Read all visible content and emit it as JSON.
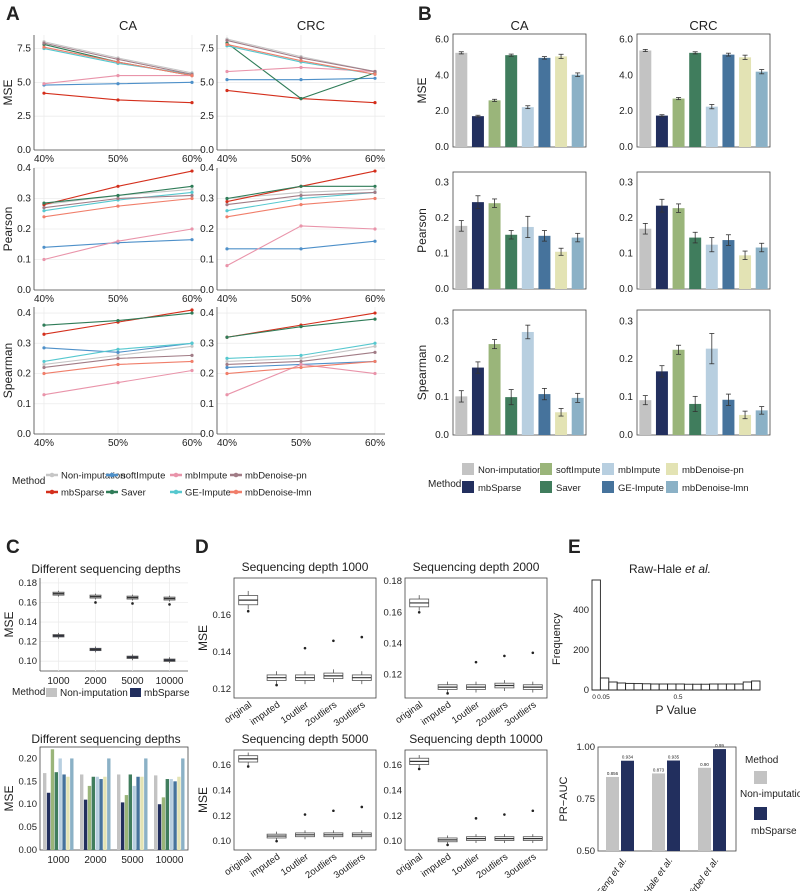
{
  "panel_letters": [
    "A",
    "B",
    "C",
    "D",
    "E"
  ],
  "colors": {
    "Non-imputation": "#c6c6c6",
    "mbSparse": "#d42f1c",
    "softImpute": "#4e90c9",
    "Saver": "#2f7c58",
    "mbImpute": "#e994aa",
    "GE-Impute": "#56c8cf",
    "mbDenoise-pn": "#a17c86",
    "mbDenoise-lmn": "#f07e6a"
  },
  "bar_colors": {
    "Non-imputation": "#c3c3c3",
    "mbSparse": "#222f5e",
    "softImpute": "#9ab57a",
    "Saver": "#407d5d",
    "mbImpute": "#b8cfe0",
    "GE-Impute": "#46739c",
    "mbDenoise-pn": "#e3e3b4",
    "mbDenoise-lmn": "#8bb1c6"
  },
  "legend": {
    "title": "Method",
    "items": [
      "Non-imputation",
      "softImpute",
      "mbImpute",
      "mbDenoise-pn",
      "mbSparse",
      "Saver",
      "GE-Impute",
      "mbDenoise-lmn"
    ]
  },
  "chart_data": [
    {
      "id": "A",
      "type": "line",
      "columns": [
        "CA",
        "CRC"
      ],
      "x": [
        "40%",
        "50%",
        "60%"
      ],
      "rows": [
        {
          "ylabel": "MSE",
          "ylim": [
            0,
            8.5
          ],
          "ticks": [
            0.0,
            2.5,
            5.0,
            7.5
          ],
          "CA": {
            "Non-imputation": [
              8.0,
              6.8,
              5.7
            ],
            "mbSparse": [
              4.2,
              3.7,
              3.5
            ],
            "softImpute": [
              4.8,
              4.9,
              5.0
            ],
            "Saver": [
              7.8,
              6.5,
              5.5
            ],
            "mbImpute": [
              4.9,
              5.5,
              5.5
            ],
            "GE-Impute": [
              7.5,
              6.4,
              5.6
            ],
            "mbDenoise-pn": [
              7.9,
              6.7,
              5.6
            ],
            "mbDenoise-lmn": [
              7.6,
              6.5,
              5.5
            ]
          },
          "CRC": {
            "Non-imputation": [
              8.2,
              6.9,
              5.8
            ],
            "mbSparse": [
              4.4,
              3.8,
              3.5
            ],
            "softImpute": [
              5.2,
              5.2,
              5.3
            ],
            "Saver": [
              7.9,
              3.8,
              5.7
            ],
            "mbImpute": [
              5.8,
              6.1,
              5.8
            ],
            "GE-Impute": [
              7.7,
              6.5,
              5.6
            ],
            "mbDenoise-pn": [
              8.1,
              6.8,
              5.8
            ],
            "mbDenoise-lmn": [
              7.8,
              6.6,
              5.6
            ]
          }
        },
        {
          "ylabel": "Pearson",
          "ylim": [
            0,
            0.4
          ],
          "ticks": [
            0.0,
            0.1,
            0.2,
            0.3,
            0.4
          ],
          "CA": {
            "Non-imputation": [
              0.28,
              0.31,
              0.33
            ],
            "mbSparse": [
              0.28,
              0.34,
              0.39
            ],
            "softImpute": [
              0.14,
              0.155,
              0.165
            ],
            "Saver": [
              0.285,
              0.31,
              0.34
            ],
            "mbImpute": [
              0.1,
              0.16,
              0.2
            ],
            "GE-Impute": [
              0.26,
              0.295,
              0.32
            ],
            "mbDenoise-pn": [
              0.27,
              0.3,
              0.31
            ],
            "mbDenoise-lmn": [
              0.24,
              0.275,
              0.3
            ]
          },
          "CRC": {
            "Non-imputation": [
              0.3,
              0.32,
              0.33
            ],
            "mbSparse": [
              0.29,
              0.34,
              0.39
            ],
            "softImpute": [
              0.135,
              0.135,
              0.16
            ],
            "Saver": [
              0.3,
              0.34,
              0.34
            ],
            "mbImpute": [
              0.08,
              0.21,
              0.2
            ],
            "GE-Impute": [
              0.26,
              0.3,
              0.32
            ],
            "mbDenoise-pn": [
              0.28,
              0.31,
              0.32
            ],
            "mbDenoise-lmn": [
              0.24,
              0.28,
              0.3
            ]
          }
        },
        {
          "ylabel": "Spearman",
          "ylim": [
            0,
            0.42
          ],
          "ticks": [
            0.0,
            0.1,
            0.2,
            0.3,
            0.4
          ],
          "CA": {
            "Non-imputation": [
              0.23,
              0.26,
              0.29
            ],
            "mbSparse": [
              0.33,
              0.37,
              0.41
            ],
            "softImpute": [
              0.285,
              0.27,
              0.3
            ],
            "Saver": [
              0.36,
              0.375,
              0.4
            ],
            "mbImpute": [
              0.13,
              0.17,
              0.21
            ],
            "GE-Impute": [
              0.24,
              0.28,
              0.3
            ],
            "mbDenoise-pn": [
              0.22,
              0.25,
              0.26
            ],
            "mbDenoise-lmn": [
              0.2,
              0.23,
              0.24
            ]
          },
          "CRC": {
            "Non-imputation": [
              0.24,
              0.25,
              0.29
            ],
            "mbSparse": [
              0.32,
              0.36,
              0.4
            ],
            "softImpute": [
              0.22,
              0.23,
              0.24
            ],
            "Saver": [
              0.32,
              0.355,
              0.38
            ],
            "mbImpute": [
              0.13,
              0.23,
              0.2
            ],
            "GE-Impute": [
              0.25,
              0.26,
              0.3
            ],
            "mbDenoise-pn": [
              0.23,
              0.24,
              0.27
            ],
            "mbDenoise-lmn": [
              0.2,
              0.22,
              0.24
            ]
          }
        }
      ]
    },
    {
      "id": "B",
      "type": "bar",
      "columns": [
        "CA",
        "CRC"
      ],
      "categories": [
        "Non-imputation",
        "mbSparse",
        "softImpute",
        "Saver",
        "mbImpute",
        "GE-Impute",
        "mbDenoise-pn",
        "mbDenoise-lmn"
      ],
      "rows": [
        {
          "ylabel": "MSE",
          "ylim": [
            0,
            6.3
          ],
          "ticks": [
            0.0,
            2.0,
            4.0,
            6.0
          ],
          "CA": [
            5.25,
            1.72,
            2.6,
            5.12,
            2.22,
            4.97,
            5.05,
            4.03
          ],
          "CA_err": [
            0.06,
            0.05,
            0.06,
            0.06,
            0.08,
            0.07,
            0.12,
            0.1
          ],
          "CRC": [
            5.38,
            1.75,
            2.7,
            5.25,
            2.25,
            5.15,
            5.0,
            4.2
          ],
          "CRC_err": [
            0.06,
            0.05,
            0.06,
            0.06,
            0.12,
            0.08,
            0.12,
            0.12
          ]
        },
        {
          "ylabel": "Pearson",
          "ylim": [
            0,
            0.33
          ],
          "ticks": [
            0.0,
            0.1,
            0.2,
            0.3
          ],
          "CA": [
            0.178,
            0.245,
            0.242,
            0.153,
            0.175,
            0.15,
            0.105,
            0.145
          ],
          "CA_err": [
            0.015,
            0.018,
            0.012,
            0.012,
            0.03,
            0.015,
            0.01,
            0.012
          ],
          "CRC": [
            0.17,
            0.235,
            0.228,
            0.145,
            0.125,
            0.138,
            0.095,
            0.117
          ],
          "CRC_err": [
            0.015,
            0.018,
            0.012,
            0.015,
            0.02,
            0.015,
            0.012,
            0.012
          ]
        },
        {
          "ylabel": "Spearman",
          "ylim": [
            0,
            0.33
          ],
          "ticks": [
            0.0,
            0.1,
            0.2,
            0.3
          ],
          "CA": [
            0.102,
            0.178,
            0.24,
            0.1,
            0.272,
            0.108,
            0.06,
            0.098
          ],
          "CA_err": [
            0.015,
            0.015,
            0.012,
            0.02,
            0.018,
            0.015,
            0.01,
            0.012
          ],
          "CRC": [
            0.092,
            0.168,
            0.225,
            0.082,
            0.228,
            0.093,
            0.053,
            0.065
          ],
          "CRC_err": [
            0.012,
            0.015,
            0.012,
            0.02,
            0.04,
            0.015,
            0.01,
            0.01
          ]
        }
      ],
      "legend_title": "Method",
      "legend_items": [
        "Non-imputation",
        "softImpute",
        "mbImpute",
        "mbDenoise-pn",
        "mbSparse",
        "Saver",
        "GE-Impute",
        "mbDenoise-lmn"
      ]
    },
    {
      "id": "C1",
      "type": "box",
      "title": "Different sequencing depths",
      "ylabel": "MSE",
      "ylim": [
        0.09,
        0.185
      ],
      "ticks": [
        0.1,
        0.12,
        0.14,
        0.16,
        0.18
      ],
      "categories": [
        "1000",
        "2000",
        "5000",
        "10000"
      ],
      "series": [
        {
          "name": "Non-imputation",
          "medians": [
            0.169,
            0.166,
            0.165,
            0.164
          ]
        },
        {
          "name": "mbSparse",
          "medians": [
            0.126,
            0.112,
            0.104,
            0.101
          ]
        }
      ],
      "legend_title": "Method",
      "legend_items": [
        "Non-imputation",
        "mbSparse"
      ]
    },
    {
      "id": "C2",
      "type": "bar",
      "title": "Different sequencing depths",
      "ylabel": "MSE",
      "ylim": [
        0,
        0.225
      ],
      "ticks": [
        0.0,
        0.05,
        0.1,
        0.15,
        0.2
      ],
      "categories": [
        "1000",
        "2000",
        "5000",
        "10000"
      ],
      "methods": [
        "Non-imputation",
        "mbSparse",
        "softImpute",
        "Saver",
        "mbImpute",
        "GE-Impute",
        "mbDenoise-pn",
        "mbDenoise-lmn"
      ],
      "values": [
        [
          0.168,
          0.125,
          0.22,
          0.17,
          0.2,
          0.165,
          0.16,
          0.2
        ],
        [
          0.165,
          0.11,
          0.14,
          0.16,
          0.16,
          0.155,
          0.16,
          0.2
        ],
        [
          0.165,
          0.104,
          0.12,
          0.165,
          0.14,
          0.16,
          0.16,
          0.2
        ],
        [
          0.163,
          0.1,
          0.115,
          0.155,
          0.155,
          0.15,
          0.16,
          0.2
        ]
      ]
    },
    {
      "id": "D",
      "type": "box",
      "categories": [
        "original",
        "imputed",
        "1outlier",
        "2outliers",
        "3outliers"
      ],
      "panels": [
        {
          "title": "Sequencing depth 1000",
          "ylabel": "MSE",
          "ylim": [
            0.115,
            0.18
          ],
          "ticks": [
            0.12,
            0.14,
            0.16
          ],
          "medians": [
            0.168,
            0.126,
            0.126,
            0.127,
            0.126
          ]
        },
        {
          "title": "Sequencing depth 2000",
          "ylabel": "",
          "ylim": [
            0.105,
            0.182
          ],
          "ticks": [
            0.12,
            0.14,
            0.16,
            0.18
          ],
          "medians": [
            0.166,
            0.112,
            0.112,
            0.113,
            0.112
          ]
        },
        {
          "title": "Sequencing depth 5000",
          "ylabel": "MSE",
          "ylim": [
            0.093,
            0.172
          ],
          "ticks": [
            0.1,
            0.12,
            0.14,
            0.16
          ],
          "medians": [
            0.165,
            0.104,
            0.105,
            0.105,
            0.105
          ]
        },
        {
          "title": "Sequencing depth 10000",
          "ylabel": "",
          "ylim": [
            0.093,
            0.172
          ],
          "ticks": [
            0.1,
            0.12,
            0.14,
            0.16
          ],
          "medians": [
            0.163,
            0.101,
            0.102,
            0.102,
            0.102
          ]
        }
      ]
    },
    {
      "id": "E1",
      "type": "histogram",
      "title": "Raw-Hale",
      "title_italic": "et al.",
      "xlabel": "P Value",
      "ylabel": "Frequency",
      "ylim": [
        0,
        560
      ],
      "ticks": [
        0,
        200,
        400
      ],
      "xticks": [
        "0",
        "0.05",
        "0.5"
      ],
      "counts": [
        550,
        60,
        40,
        35,
        33,
        32,
        31,
        30,
        30,
        30,
        30,
        29,
        29,
        29,
        30,
        30,
        30,
        30,
        40,
        45
      ]
    },
    {
      "id": "E2",
      "type": "bar",
      "ylabel": "PR−AUC",
      "ylim": [
        0.5,
        1.0
      ],
      "ticks": [
        0.5,
        0.75,
        1.0
      ],
      "categories": [
        "Feng et al.",
        "Hale et al.",
        "Wirbel et al."
      ],
      "series": [
        {
          "name": "Non-imputation",
          "values": [
            0.856,
            0.873,
            0.9
          ]
        },
        {
          "name": "mbSparse",
          "values": [
            0.934,
            0.935,
            0.99
          ]
        }
      ],
      "value_labels": [
        [
          "0.856",
          "0.934"
        ],
        [
          "0.873",
          "0.935"
        ],
        [
          "0.90",
          "0.99"
        ]
      ],
      "legend_title": "Method",
      "legend_items": [
        "Non-imputation",
        "mbSparse"
      ]
    }
  ]
}
